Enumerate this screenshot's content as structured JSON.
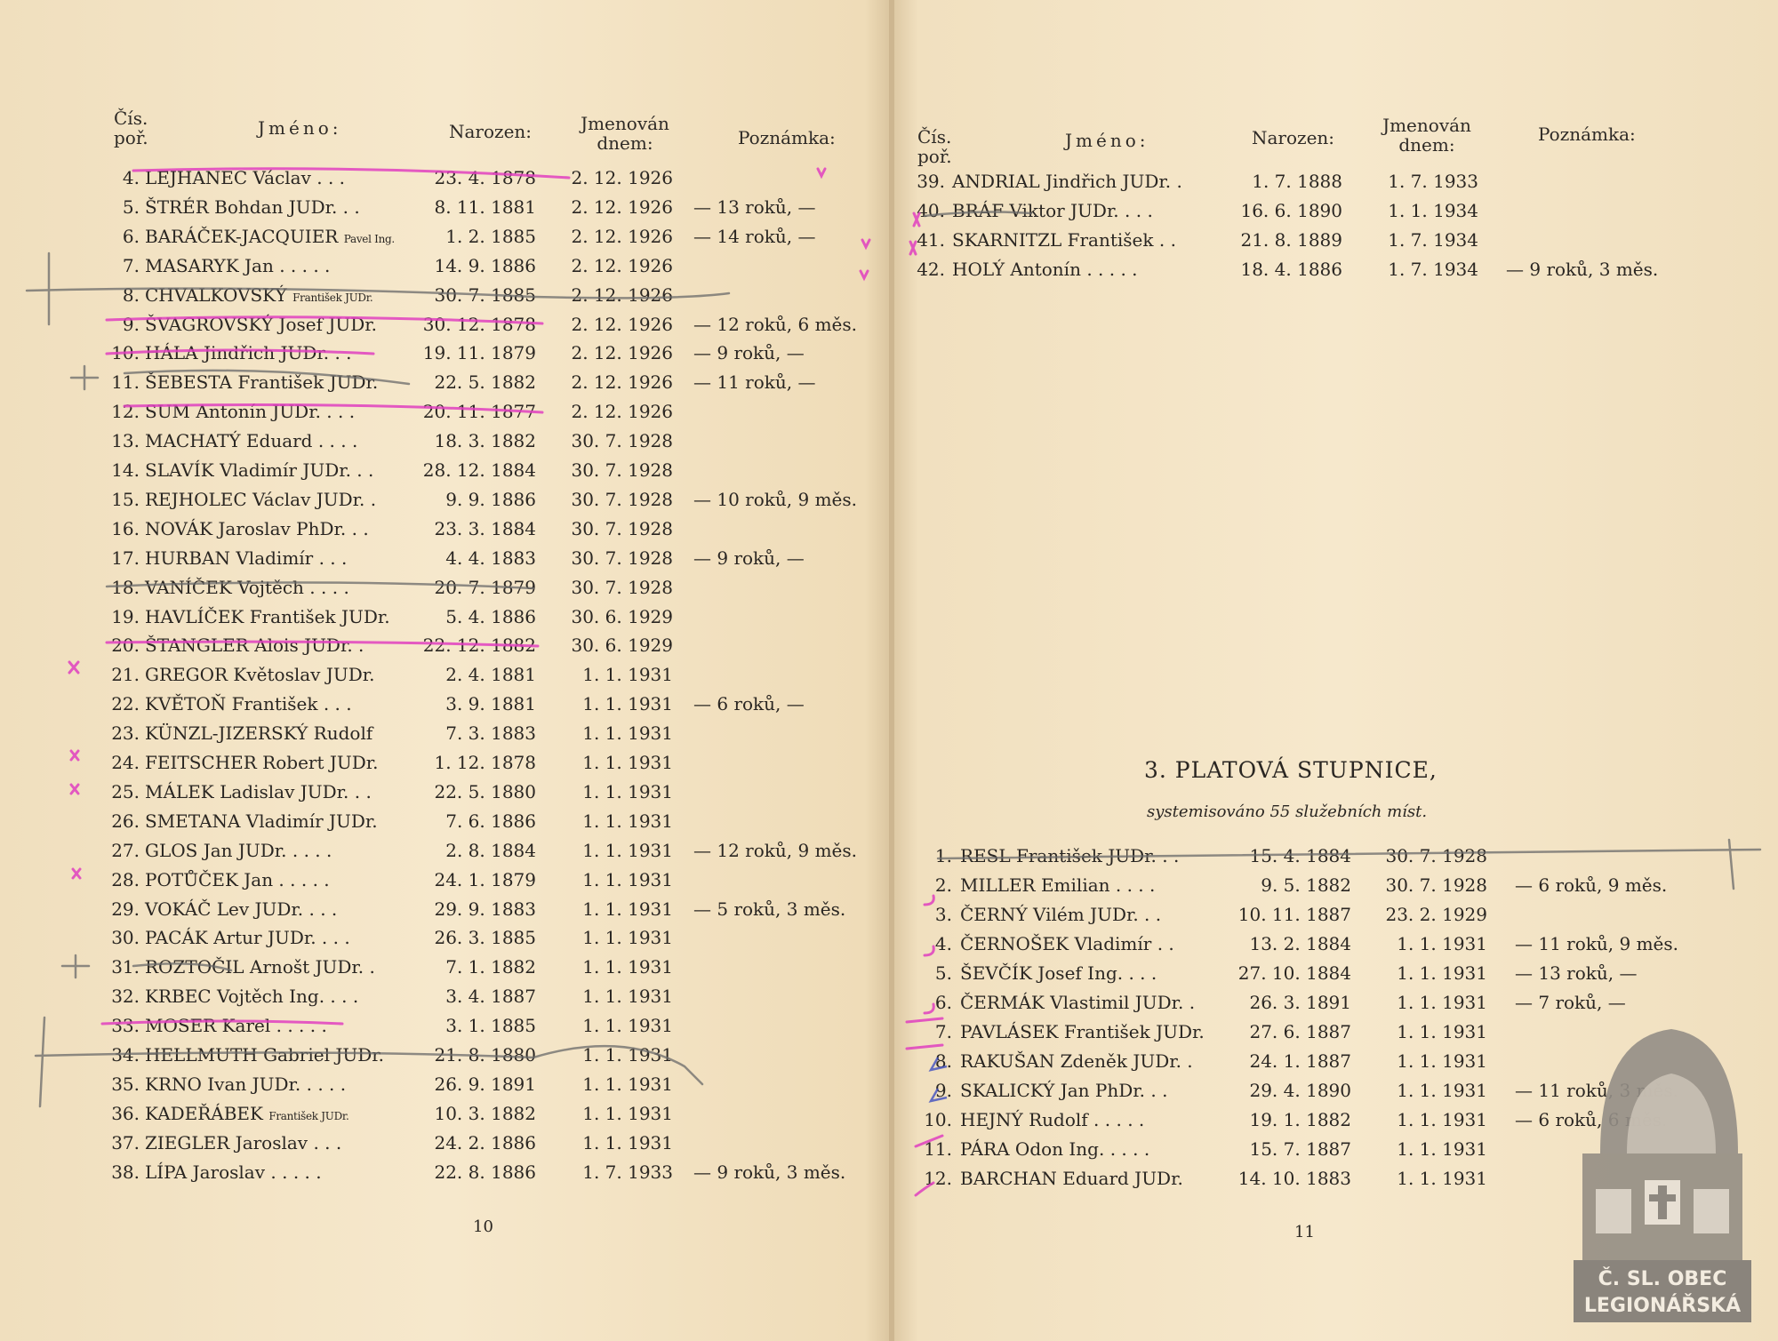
{
  "headers": {
    "num": "Čís. poř.",
    "num1": "Čís.",
    "num2": "poř.",
    "name": "Jméno:",
    "born": "Narozen:",
    "appt1": "Jmenován",
    "appt2": "dnem:",
    "note": "Poznámka:"
  },
  "left_rows": [
    {
      "num": "4.",
      "name": "LEJHANEC Václav . . .",
      "born": "23. 4. 1878",
      "appt": "2. 12. 1926",
      "note": ""
    },
    {
      "num": "5.",
      "name": "ŠTRÉR Bohdan JUDr. . .",
      "born": "8. 11. 1881",
      "appt": "2. 12. 1926",
      "note": "— 13 roků, —"
    },
    {
      "num": "6.",
      "name": "BARÁČEK-JACQUIER",
      "small": "Pavel Ing.",
      "born": "1. 2. 1885",
      "appt": "2. 12. 1926",
      "note": "— 14 roků, —"
    },
    {
      "num": "7.",
      "name": "MASARYK Jan . . . . .",
      "born": "14. 9. 1886",
      "appt": "2. 12. 1926",
      "note": ""
    },
    {
      "num": "8.",
      "name": "CHVALKOVSKÝ",
      "small": "František JUDr.",
      "born": "30. 7. 1885",
      "appt": "2. 12. 1926",
      "note": ""
    },
    {
      "num": "9.",
      "name": "ŠVAGROVSKÝ Josef JUDr.",
      "born": "30. 12. 1878",
      "appt": "2. 12. 1926",
      "note": "— 12 roků, 6 měs."
    },
    {
      "num": "10.",
      "name": "HÁLA Jindřich JUDr. . .",
      "born": "19. 11. 1879",
      "appt": "2. 12. 1926",
      "note": "— 9 roků, —"
    },
    {
      "num": "11.",
      "name": "ŠEBESTA František JUDr.",
      "born": "22. 5. 1882",
      "appt": "2. 12. 1926",
      "note": "— 11 roků, —"
    },
    {
      "num": "12.",
      "name": "SUM Antonín JUDr. . . .",
      "born": "20. 11. 1877",
      "appt": "2. 12. 1926",
      "note": ""
    },
    {
      "num": "13.",
      "name": "MACHATÝ Eduard . . . .",
      "born": "18. 3. 1882",
      "appt": "30. 7. 1928",
      "note": ""
    },
    {
      "num": "14.",
      "name": "SLAVÍK Vladimír JUDr. . .",
      "born": "28. 12. 1884",
      "appt": "30. 7. 1928",
      "note": ""
    },
    {
      "num": "15.",
      "name": "REJHOLEC Václav JUDr. .",
      "born": "9. 9. 1886",
      "appt": "30. 7. 1928",
      "note": "— 10 roků, 9 měs."
    },
    {
      "num": "16.",
      "name": "NOVÁK Jaroslav PhDr. . .",
      "born": "23. 3. 1884",
      "appt": "30. 7. 1928",
      "note": ""
    },
    {
      "num": "17.",
      "name": "HURBAN Vladimír . . .",
      "born": "4. 4. 1883",
      "appt": "30. 7. 1928",
      "note": "— 9 roků, —"
    },
    {
      "num": "18.",
      "name": "VANÍČEK Vojtěch . . . .",
      "born": "20. 7. 1879",
      "appt": "30. 7. 1928",
      "note": ""
    },
    {
      "num": "19.",
      "name": "HAVLÍČEK František JUDr.",
      "born": "5. 4. 1886",
      "appt": "30. 6. 1929",
      "note": ""
    },
    {
      "num": "20.",
      "name": "ŠTANGLER Alois JUDr. .",
      "born": "22. 12. 1882",
      "appt": "30. 6. 1929",
      "note": ""
    },
    {
      "num": "21.",
      "name": "GREGOR Květoslav JUDr.",
      "born": "2. 4. 1881",
      "appt": "1. 1. 1931",
      "note": ""
    },
    {
      "num": "22.",
      "name": "KVĚTOŇ František . . .",
      "born": "3. 9. 1881",
      "appt": "1. 1. 1931",
      "note": "— 6 roků, —"
    },
    {
      "num": "23.",
      "name": "KÜNZL-JIZERSKÝ Rudolf",
      "born": "7. 3. 1883",
      "appt": "1. 1. 1931",
      "note": ""
    },
    {
      "num": "24.",
      "name": "FEITSCHER Robert JUDr.",
      "born": "1. 12. 1878",
      "appt": "1. 1. 1931",
      "note": ""
    },
    {
      "num": "25.",
      "name": "MÁLEK Ladislav JUDr. . .",
      "born": "22. 5. 1880",
      "appt": "1. 1. 1931",
      "note": ""
    },
    {
      "num": "26.",
      "name": "SMETANA Vladimír JUDr.",
      "born": "7. 6. 1886",
      "appt": "1. 1. 1931",
      "note": ""
    },
    {
      "num": "27.",
      "name": "GLOS Jan JUDr. . . . .",
      "born": "2. 8. 1884",
      "appt": "1. 1. 1931",
      "note": "— 12 roků, 9 měs."
    },
    {
      "num": "28.",
      "name": "POTŮČEK Jan . . . . .",
      "born": "24. 1. 1879",
      "appt": "1. 1. 1931",
      "note": ""
    },
    {
      "num": "29.",
      "name": "VOKÁČ Lev JUDr. . . .",
      "born": "29. 9. 1883",
      "appt": "1. 1. 1931",
      "note": "— 5 roků, 3 měs."
    },
    {
      "num": "30.",
      "name": "PACÁK Artur JUDr. . . .",
      "born": "26. 3. 1885",
      "appt": "1. 1. 1931",
      "note": ""
    },
    {
      "num": "31.",
      "name": "ROZTOČIL Arnošt JUDr. .",
      "born": "7. 1. 1882",
      "appt": "1. 1. 1931",
      "note": ""
    },
    {
      "num": "32.",
      "name": "KRBEC Vojtěch Ing. . . .",
      "born": "3. 4. 1887",
      "appt": "1. 1. 1931",
      "note": ""
    },
    {
      "num": "33.",
      "name": "MOSER Karel . . . . .",
      "born": "3. 1. 1885",
      "appt": "1. 1. 1931",
      "note": ""
    },
    {
      "num": "34.",
      "name": "HELLMUTH Gabriel JUDr.",
      "born": "21. 8. 1880",
      "appt": "1. 1. 1931",
      "note": ""
    },
    {
      "num": "35.",
      "name": "KRNO Ivan JUDr. . . . .",
      "born": "26. 9. 1891",
      "appt": "1. 1. 1931",
      "note": ""
    },
    {
      "num": "36.",
      "name": "KADEŘÁBEK",
      "small": "František JUDr.",
      "born": "10. 3. 1882",
      "appt": "1. 1. 1931",
      "note": ""
    },
    {
      "num": "37.",
      "name": "ZIEGLER Jaroslav . . .",
      "born": "24. 2. 1886",
      "appt": "1. 1. 1931",
      "note": ""
    },
    {
      "num": "38.",
      "name": "LÍPA Jaroslav . . . . .",
      "born": "22. 8. 1886",
      "appt": "1. 7. 1933",
      "note": "— 9 roků, 3 měs."
    }
  ],
  "right_rows": [
    {
      "num": "39.",
      "name": "ANDRIAL Jindřich JUDr. .",
      "born": "1. 7. 1888",
      "appt": "1. 7. 1933",
      "note": ""
    },
    {
      "num": "40.",
      "name": "BRÁF Viktor JUDr. . . .",
      "born": "16. 6. 1890",
      "appt": "1. 1. 1934",
      "note": ""
    },
    {
      "num": "41.",
      "name": "SKARNITZL František . .",
      "born": "21. 8. 1889",
      "appt": "1. 7. 1934",
      "note": ""
    },
    {
      "num": "42.",
      "name": "HOLÝ Antonín . . . . .",
      "born": "18. 4. 1886",
      "appt": "1. 7. 1934",
      "note": "— 9 roků, 3 měs."
    }
  ],
  "section": {
    "title": "3. PLATOVÁ STUPNICE,",
    "subtitle": "systemisováno 55 služebních míst.",
    "rows": [
      {
        "num": "1.",
        "name": "RESL František JUDr. . .",
        "born": "15. 4. 1884",
        "appt": "30. 7. 1928",
        "note": ""
      },
      {
        "num": "2.",
        "name": "MILLER Emilian . . . .",
        "born": "9. 5. 1882",
        "appt": "30. 7. 1928",
        "note": "— 6 roků, 9 měs."
      },
      {
        "num": "3.",
        "name": "ČERNÝ Vilém JUDr. . .",
        "born": "10. 11. 1887",
        "appt": "23. 2. 1929",
        "note": ""
      },
      {
        "num": "4.",
        "name": "ČERNOŠEK Vladimír . .",
        "born": "13. 2. 1884",
        "appt": "1. 1. 1931",
        "note": "— 11 roků, 9 měs."
      },
      {
        "num": "5.",
        "name": "ŠEVČÍK Josef Ing. . . .",
        "born": "27. 10. 1884",
        "appt": "1. 1. 1931",
        "note": "— 13 roků, —"
      },
      {
        "num": "6.",
        "name": "ČERMÁK Vlastimil JUDr. .",
        "born": "26. 3. 1891",
        "appt": "1. 1. 1931",
        "note": "— 7 roků, —"
      },
      {
        "num": "7.",
        "name": "PAVLÁSEK František JUDr.",
        "born": "27. 6. 1887",
        "appt": "1. 1. 1931",
        "note": ""
      },
      {
        "num": "8.",
        "name": "RAKUŠAN Zdeněk JUDr. .",
        "born": "24. 1. 1887",
        "appt": "1. 1. 1931",
        "note": ""
      },
      {
        "num": "9.",
        "name": "SKALICKÝ Jan PhDr. . .",
        "born": "29. 4. 1890",
        "appt": "1. 1. 1931",
        "note": "— 11 roků, 3 měs."
      },
      {
        "num": "10.",
        "name": "HEJNÝ Rudolf . . . . .",
        "born": "19. 1. 1882",
        "appt": "1. 1. 1931",
        "note": "— 6 roků, 6 měs."
      },
      {
        "num": "11.",
        "name": "PÁRA Odon Ing. . . . .",
        "born": "15. 7. 1887",
        "appt": "1. 1. 1931",
        "note": ""
      },
      {
        "num": "12.",
        "name": "BARCHAN Eduard JUDr.",
        "born": "14. 10. 1883",
        "appt": "1. 1. 1931",
        "note": ""
      }
    ]
  },
  "page_numbers": {
    "left": "10",
    "right": "11"
  },
  "watermark": {
    "line1": "Č. SL.  OBEC",
    "line2": "LEGIONÁŘSKÁ"
  },
  "colors": {
    "paper": "#f3e3c3",
    "ink": "#2a2622",
    "pink_marker": "#e040c0",
    "pencil": "#6a6a6a",
    "blue_pen": "#4050c0"
  }
}
